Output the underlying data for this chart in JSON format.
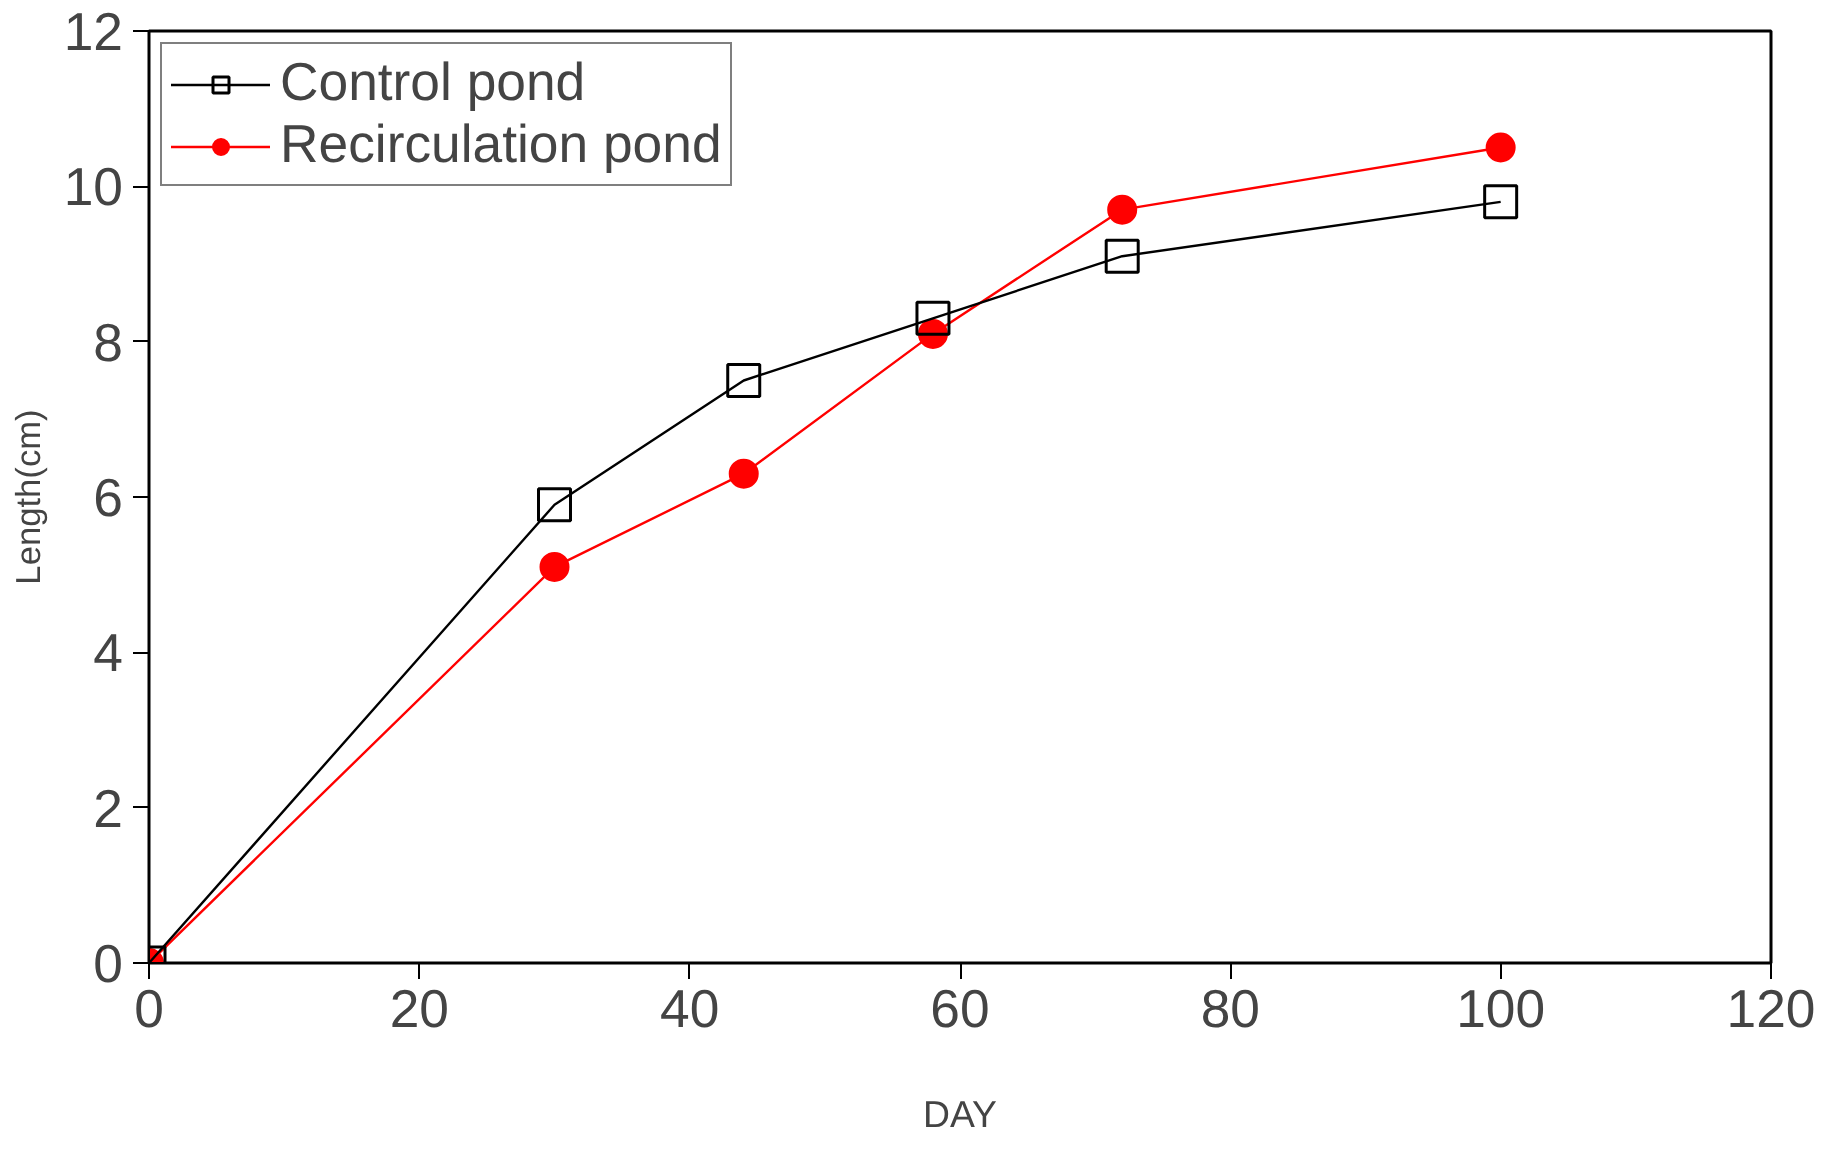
{
  "chart_data": {
    "type": "line",
    "xlabel": "DAY",
    "ylabel": "Length(cm)",
    "x": [
      0,
      30,
      44,
      58,
      72,
      100
    ],
    "series": [
      {
        "name": "Control pond",
        "color": "#000000",
        "marker": "square",
        "values": [
          0,
          5.9,
          7.5,
          8.3,
          9.1,
          9.8
        ]
      },
      {
        "name": "Recirculation pond",
        "color": "#ff0000",
        "marker": "circle",
        "values": [
          0,
          5.1,
          6.3,
          8.1,
          9.7,
          10.5
        ]
      }
    ],
    "xlim": [
      0,
      120
    ],
    "xticks": [
      0,
      20,
      40,
      60,
      80,
      100,
      120
    ],
    "ylim": [
      0,
      12
    ],
    "yticks": [
      0,
      2,
      4,
      6,
      8,
      10,
      12
    ],
    "grid": false,
    "legend": "top left"
  }
}
